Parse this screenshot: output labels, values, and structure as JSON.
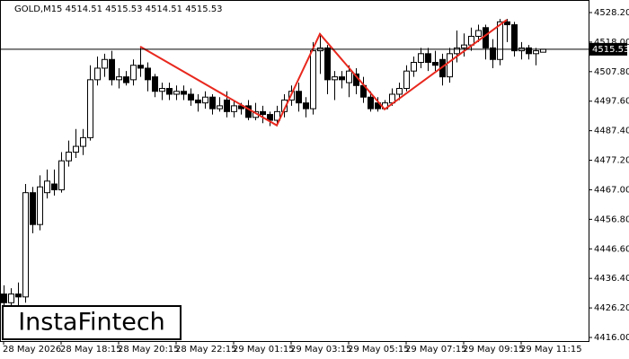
{
  "chart_data": {
    "type": "candlestick",
    "header": "GOLD,M15  4514.51 4515.53 4514.51 4515.53",
    "watermark": "InstaFintech",
    "categories": [
      "28 May 2026",
      null,
      null,
      null,
      null,
      null,
      null,
      null,
      "28 May 18:15",
      null,
      null,
      null,
      null,
      null,
      null,
      null,
      "28 May 20:15",
      null,
      null,
      null,
      null,
      null,
      null,
      null,
      "28 May 22:15",
      null,
      null,
      null,
      null,
      null,
      null,
      null,
      "29 May 01:15",
      null,
      null,
      null,
      null,
      null,
      null,
      null,
      "29 May 03:15",
      null,
      null,
      null,
      null,
      null,
      null,
      null,
      "29 May 05:15",
      null,
      null,
      null,
      null,
      null,
      null,
      null,
      "29 May 07:15",
      null,
      null,
      null,
      null,
      null,
      null,
      null,
      "29 May 09:15",
      null,
      null,
      null,
      null,
      null,
      null,
      null,
      "29 May 11:15",
      null,
      null,
      null
    ],
    "open": [
      4431,
      4428,
      4431,
      4430,
      4466,
      4455,
      4466,
      4469,
      4467,
      4477,
      4480,
      4482,
      4485,
      4505,
      4509,
      4512,
      4505,
      4506,
      4505,
      4510,
      4509,
      4506,
      4501,
      4502,
      4500,
      4501,
      4500,
      4498,
      4497,
      4499,
      4495,
      4498,
      4494,
      4496,
      4496,
      4492,
      4494,
      4493,
      4491,
      4494,
      4498,
      4501,
      4497,
      4495,
      4515,
      4516,
      4505,
      4506,
      4504,
      4507,
      4503,
      4499,
      4497,
      4495,
      4497,
      4500,
      4502,
      4508,
      4511,
      4514,
      4511,
      4512,
      4506,
      4514,
      4516,
      4517,
      4520,
      4523,
      4516,
      4512,
      4525,
      4524,
      4515,
      4516,
      4514,
      4514.51
    ],
    "high": [
      4434,
      4433,
      4435,
      4469,
      4468,
      4472,
      4474,
      4474,
      4480,
      4484,
      4488,
      4488,
      4510,
      4513,
      4514,
      4515,
      4509,
      4508,
      4512,
      4516,
      4511,
      4507,
      4504,
      4504,
      4503,
      4503,
      4502,
      4500,
      4501,
      4500,
      4499,
      4501,
      4498,
      4497,
      4498,
      4497,
      4496,
      4494,
      4496,
      4500,
      4503,
      4504,
      4499,
      4518,
      4521,
      4517,
      4508,
      4508,
      4510,
      4509,
      4506,
      4501,
      4499,
      4498,
      4502,
      4504,
      4510,
      4513,
      4516,
      4516,
      4515,
      4514,
      4516,
      4522,
      4521,
      4523,
      4524,
      4524,
      4519,
      4526,
      4526,
      4525,
      4518,
      4517,
      4516,
      4515.53
    ],
    "low": [
      4424,
      4425,
      4426,
      4428,
      4452,
      4453,
      4464,
      4465,
      4466,
      4475,
      4478,
      4479,
      4484,
      4503,
      4506,
      4503,
      4502,
      4503,
      4503,
      4506,
      4501,
      4499,
      4498,
      4498,
      4498,
      4498,
      4496,
      4494,
      4495,
      4493,
      4494,
      4492,
      4492,
      4493,
      4491,
      4491,
      4490,
      4489,
      4489,
      4492,
      4496,
      4494,
      4492,
      4493,
      4507,
      4500,
      4498,
      4502,
      4499,
      4500,
      4497,
      4494,
      4494,
      4495,
      4496,
      4498,
      4501,
      4506,
      4509,
      4508,
      4508,
      4503,
      4504,
      4511,
      4513,
      4515,
      4518,
      4512,
      4509,
      4510,
      4518,
      4513,
      4512,
      4512,
      4510,
      4514.51
    ],
    "close": [
      4428,
      4431,
      4430,
      4466,
      4455,
      4468,
      4470,
      4467,
      4477,
      4480,
      4482,
      4485,
      4505,
      4509,
      4512,
      4505,
      4506,
      4504,
      4510,
      4509,
      4505,
      4501,
      4502,
      4500,
      4501,
      4500,
      4498,
      4497,
      4499,
      4495,
      4496,
      4494,
      4496,
      4495,
      4492,
      4494,
      4493,
      4491,
      4494,
      4498,
      4501,
      4497,
      4495,
      4515,
      4516,
      4505,
      4506,
      4505,
      4508,
      4503,
      4499,
      4495,
      4495,
      4497,
      4500,
      4502,
      4508,
      4511,
      4514,
      4511,
      4510,
      4506,
      4514,
      4516,
      4517,
      4520,
      4522,
      4516,
      4512,
      4525,
      4524,
      4515,
      4516,
      4514,
      4515,
      4515.53
    ],
    "bull_color": "#ffffff",
    "bear_color": "#000000",
    "outline_color": "#000000",
    "current_price": 4515.53,
    "pattern": {
      "color": "#e8281e",
      "x": [
        19,
        38,
        44,
        53,
        70
      ],
      "y": [
        4516.45,
        4489.25,
        4520.8,
        4494.8,
        4525.7
      ]
    },
    "ylim": [
      4414.76,
      4532.54
    ],
    "yticks": [
      {
        "value": 4528.2,
        "label": "4528.20"
      },
      {
        "value": 4518,
        "label": "4518.00"
      },
      {
        "value": 4507.8,
        "label": "4507.80"
      },
      {
        "value": 4497.6,
        "label": "4497.60"
      },
      {
        "value": 4487.4,
        "label": "4487.40"
      },
      {
        "value": 4477.2,
        "label": "4477.20"
      },
      {
        "value": 4467,
        "label": "4467.00"
      },
      {
        "value": 4456.8,
        "label": "4456.80"
      },
      {
        "value": 4446.6,
        "label": "4446.60"
      },
      {
        "value": 4436.4,
        "label": "4436.40"
      },
      {
        "value": 4426.2,
        "label": "4426.20"
      },
      {
        "value": 4416,
        "label": "4416.00"
      }
    ],
    "grid": false
  }
}
